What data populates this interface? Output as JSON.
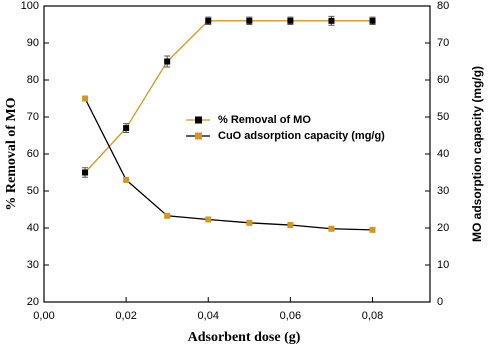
{
  "chart_data": {
    "type": "line",
    "x_label": "Adsorbent dose (g)",
    "y_label": "% Removal of MO",
    "y2_label": "MO adsorption capacity (mg/g)",
    "x": [
      0.01,
      0.02,
      0.03,
      0.04,
      0.05,
      0.06,
      0.07,
      0.08
    ],
    "series": [
      {
        "name": "% Removal of MO",
        "color": "#000000",
        "line_color": "#d4961f",
        "values": [
          55,
          67,
          85,
          96,
          96,
          96,
          96,
          96
        ],
        "errors": [
          1.3,
          1.2,
          1.5,
          1,
          1,
          1,
          1.2,
          1
        ]
      },
      {
        "name": "CuO adsorption capacity (mg/g)",
        "color": "#d4961f",
        "line_color": "#000000",
        "axis": "y2",
        "values": [
          55,
          33,
          23.3,
          22.3,
          21.4,
          20.8,
          19.8,
          19.5
        ]
      }
    ],
    "xlim": [
      0,
      0.094
    ],
    "xticks": [
      {
        "value": 0,
        "label": "0,00"
      },
      {
        "value": 0.02,
        "label": "0,02"
      },
      {
        "value": 0.04,
        "label": "0,04"
      },
      {
        "value": 0.06,
        "label": "0,06"
      },
      {
        "value": 0.08,
        "label": "0,08"
      }
    ],
    "ylim": [
      20,
      100
    ],
    "yticks": [
      20,
      30,
      40,
      50,
      60,
      70,
      80,
      90,
      100
    ],
    "y2lim": [
      0,
      80
    ],
    "y2ticks": [
      0,
      10,
      20,
      30,
      40,
      50,
      60,
      70,
      80
    ],
    "legend": "center"
  }
}
